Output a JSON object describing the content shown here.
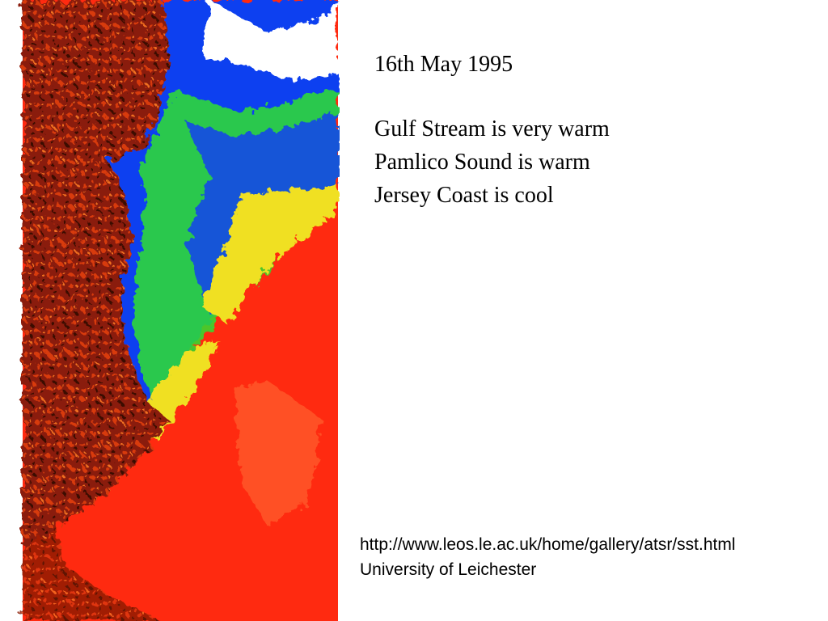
{
  "date": "16th May 1995",
  "notes": [
    "Gulf Stream is very warm",
    "Pamlico Sound is warm",
    "Jersey Coast is cool"
  ],
  "footer": {
    "url": "http://www.leos.le.ac.uk/home/gallery/atsr/sst.html",
    "source": "University of Leichester"
  }
}
